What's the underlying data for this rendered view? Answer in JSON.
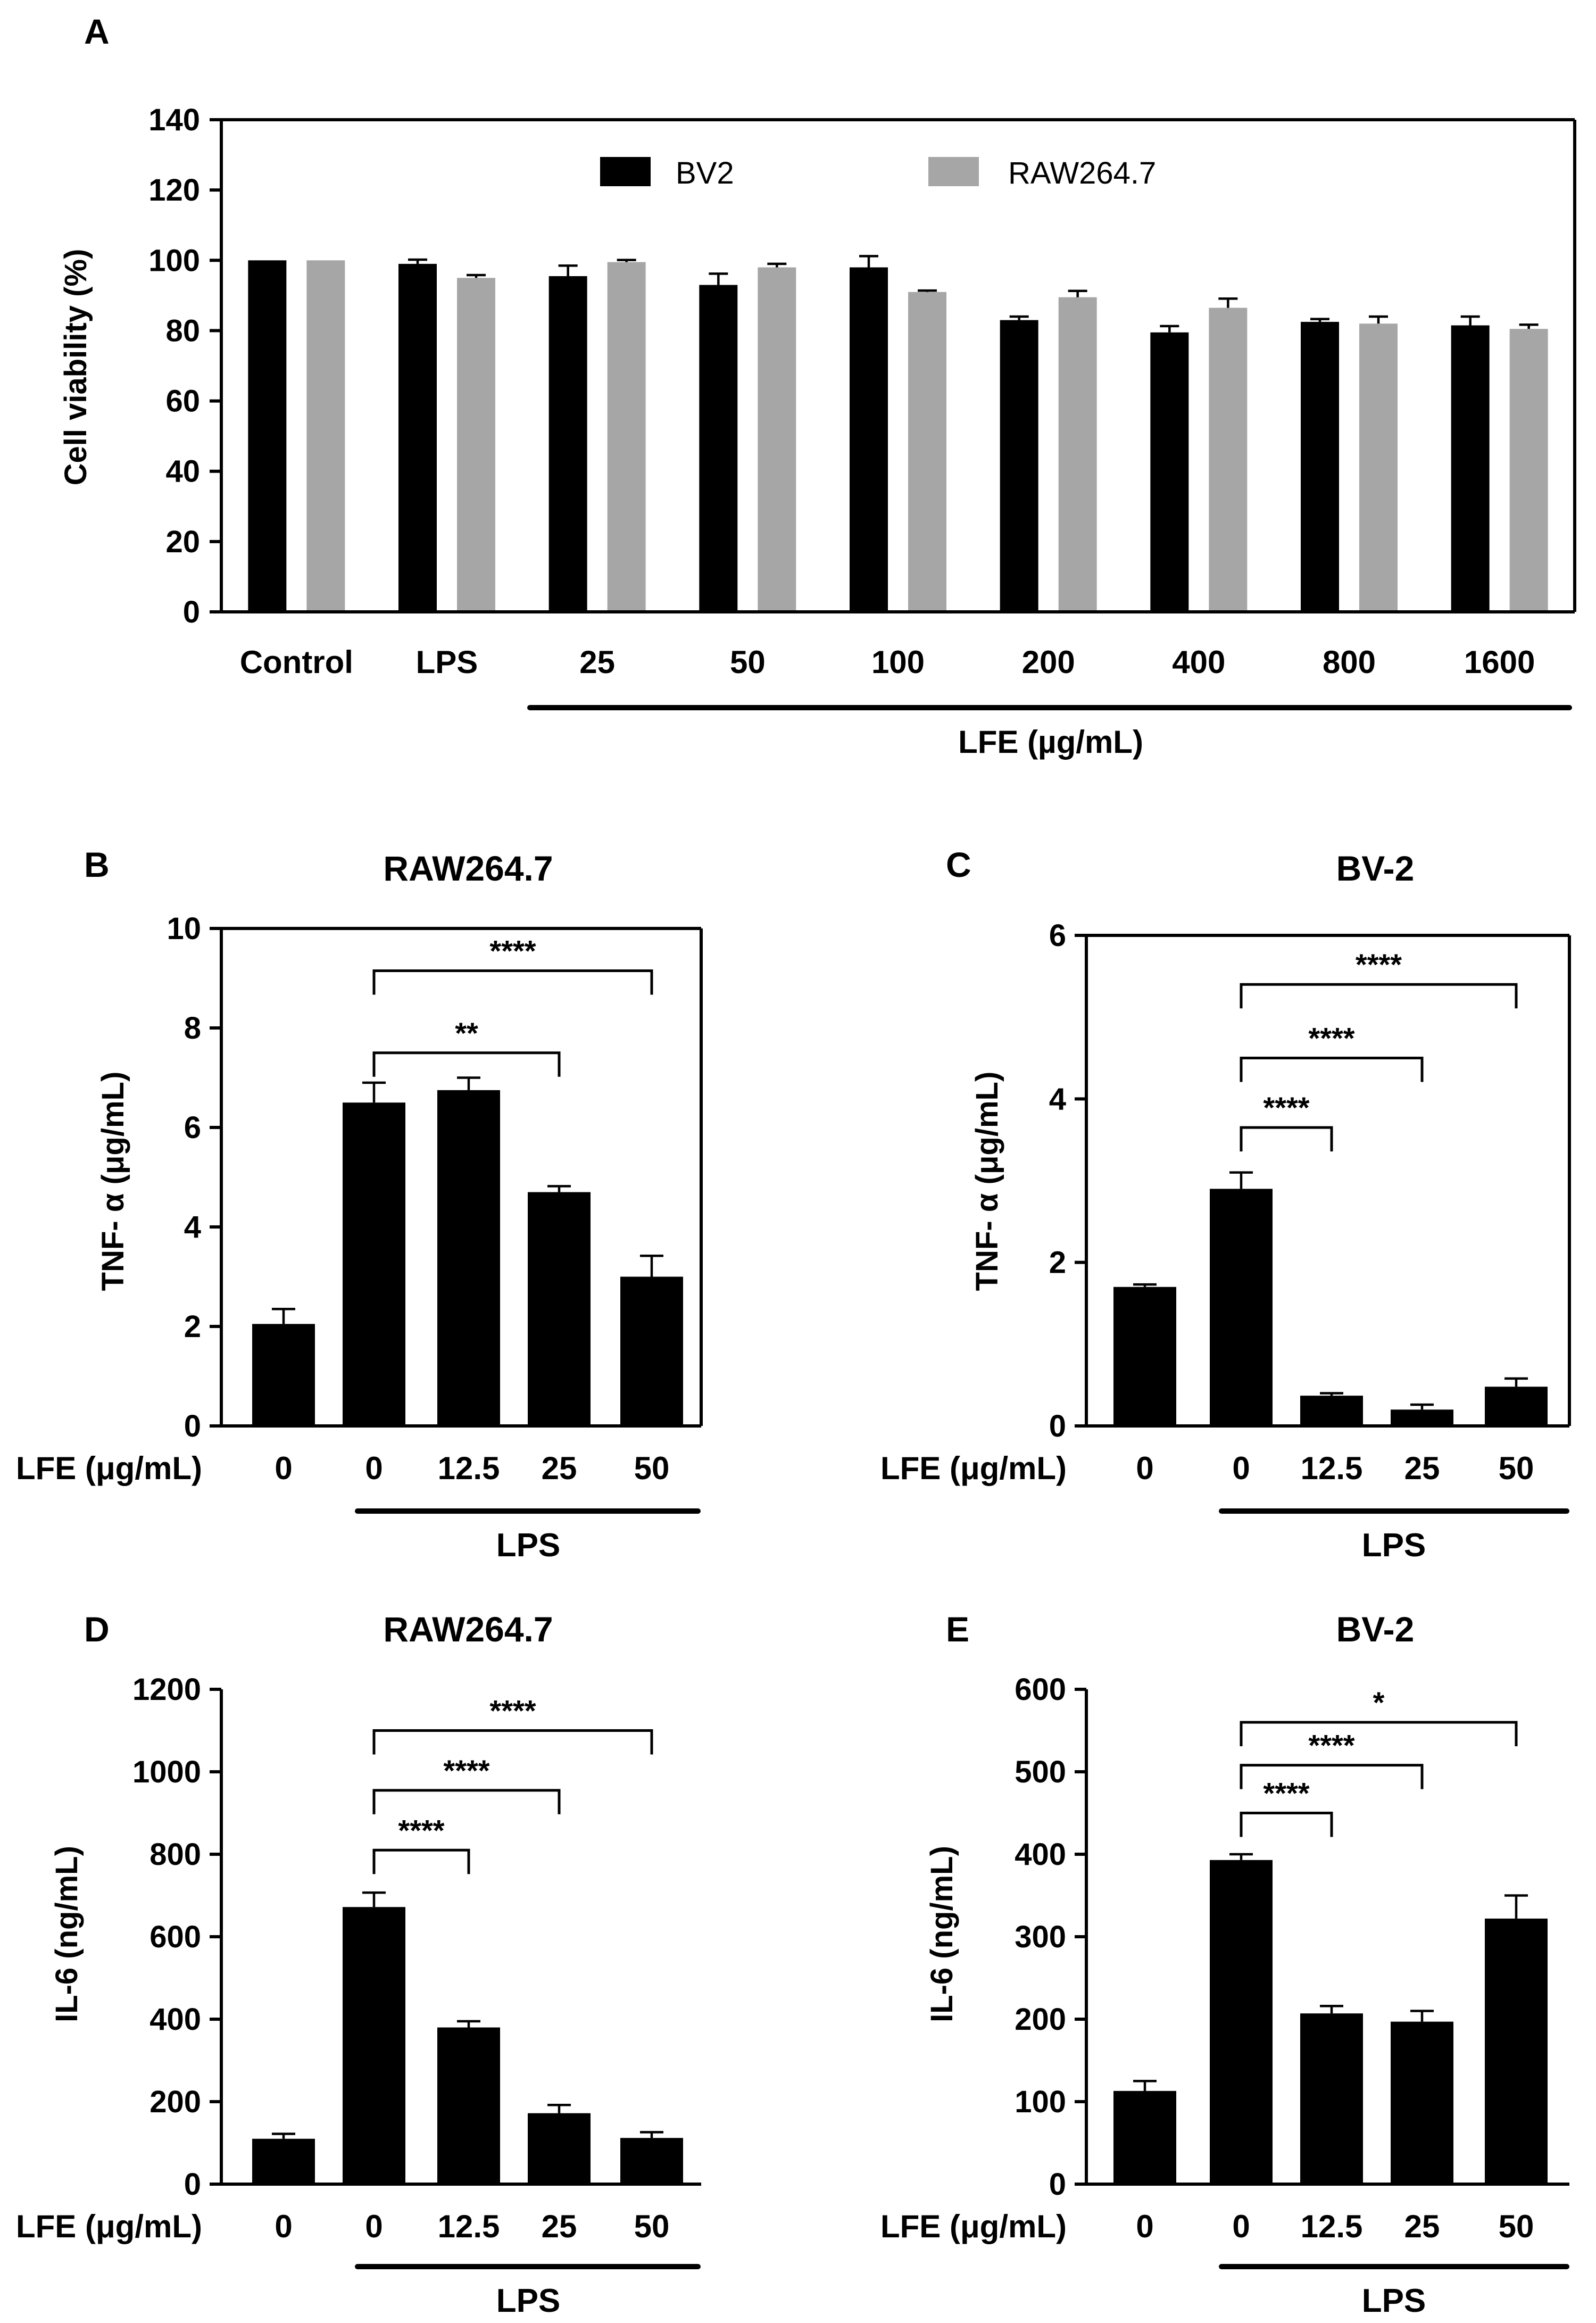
{
  "chart_data": [
    {
      "panel": "A",
      "type": "bar",
      "title": "",
      "ylabel": "Cell viability (%)",
      "xlabel": "LFE (µg/mL)",
      "ylim": [
        0,
        140
      ],
      "yticks": [
        0,
        20,
        40,
        60,
        80,
        100,
        120,
        140
      ],
      "categories": [
        "Control",
        "LPS",
        "25",
        "50",
        "100",
        "200",
        "400",
        "800",
        "1600"
      ],
      "series": [
        {
          "name": "BV2",
          "color": "#000000",
          "values": [
            100,
            99,
            95.5,
            93,
            98,
            83,
            79.5,
            82.5,
            81.5
          ],
          "errors": [
            0,
            1.2,
            3,
            3.2,
            3.2,
            1,
            1.8,
            0.8,
            2.5
          ]
        },
        {
          "name": "RAW264.7",
          "color": "#a6a6a6",
          "values": [
            100,
            95,
            99.5,
            98,
            91,
            89.5,
            86.5,
            82,
            80.5
          ],
          "errors": [
            0,
            0.8,
            0.6,
            1,
            0.4,
            1.8,
            2.6,
            2,
            1.2
          ]
        }
      ],
      "legend": {
        "position": "top"
      },
      "group_bar_label": "LFE (µg/mL)"
    },
    {
      "panel": "B",
      "type": "bar",
      "title": "RAW264.7",
      "ylabel": "TNF- α (μg/mL)",
      "xlabel_prefix": "LFE (μg/mL)",
      "ylim": [
        0,
        10
      ],
      "yticks": [
        0,
        2,
        4,
        6,
        8,
        10
      ],
      "categories": [
        "0",
        "0",
        "12.5",
        "25",
        "50"
      ],
      "values": [
        2.05,
        6.5,
        6.75,
        4.7,
        3.0
      ],
      "errors": [
        0.3,
        0.4,
        0.25,
        0.12,
        0.42
      ],
      "group_bar_label": "LPS",
      "significance": [
        {
          "from": 1,
          "to": 3,
          "level": 7.5,
          "label": "**"
        },
        {
          "from": 1,
          "to": 4,
          "level": 9.15,
          "label": "****"
        }
      ]
    },
    {
      "panel": "C",
      "type": "bar",
      "title": "BV-2",
      "ylabel": "TNF- α (μg/mL)",
      "xlabel_prefix": "LFE (μg/mL)",
      "ylim": [
        0,
        6
      ],
      "yticks": [
        0,
        2,
        4,
        6
      ],
      "categories": [
        "0",
        "0",
        "12.5",
        "25",
        "50"
      ],
      "values": [
        1.7,
        2.9,
        0.37,
        0.2,
        0.48
      ],
      "errors": [
        0.03,
        0.2,
        0.03,
        0.06,
        0.1
      ],
      "group_bar_label": "LPS",
      "significance": [
        {
          "from": 1,
          "to": 2,
          "level": 3.65,
          "label": "****"
        },
        {
          "from": 1,
          "to": 3,
          "level": 4.5,
          "label": "****"
        },
        {
          "from": 1,
          "to": 4,
          "level": 5.4,
          "label": "****"
        }
      ]
    },
    {
      "panel": "D",
      "type": "bar",
      "title": "RAW264.7",
      "ylabel": "IL-6 (ng/mL)",
      "xlabel_prefix": "LFE (μg/mL)",
      "ylim": [
        0,
        1200
      ],
      "yticks": [
        0,
        200,
        400,
        600,
        800,
        1000,
        1200
      ],
      "categories": [
        "0",
        "0",
        "12.5",
        "25",
        "50"
      ],
      "values": [
        110,
        672,
        380,
        172,
        112
      ],
      "errors": [
        12,
        35,
        15,
        20,
        14
      ],
      "group_bar_label": "LPS",
      "significance": [
        {
          "from": 1,
          "to": 2,
          "level": 810,
          "label": "****"
        },
        {
          "from": 1,
          "to": 3,
          "level": 955,
          "label": "****"
        },
        {
          "from": 1,
          "to": 4,
          "level": 1100,
          "label": "****"
        }
      ]
    },
    {
      "panel": "E",
      "type": "bar",
      "title": "BV-2",
      "ylabel": "IL-6 (ng/mL)",
      "xlabel_prefix": "LFE (μg/mL)",
      "ylim": [
        0,
        600
      ],
      "yticks": [
        0,
        100,
        200,
        300,
        400,
        500,
        600
      ],
      "categories": [
        "0",
        "0",
        "12.5",
        "25",
        "50"
      ],
      "values": [
        113,
        393,
        207,
        197,
        322
      ],
      "errors": [
        12,
        7,
        9,
        13,
        28
      ],
      "group_bar_label": "LPS",
      "significance": [
        {
          "from": 1,
          "to": 2,
          "level": 450,
          "label": "****"
        },
        {
          "from": 1,
          "to": 3,
          "level": 508,
          "label": "****"
        },
        {
          "from": 1,
          "to": 4,
          "level": 560,
          "label": "*"
        }
      ]
    }
  ]
}
